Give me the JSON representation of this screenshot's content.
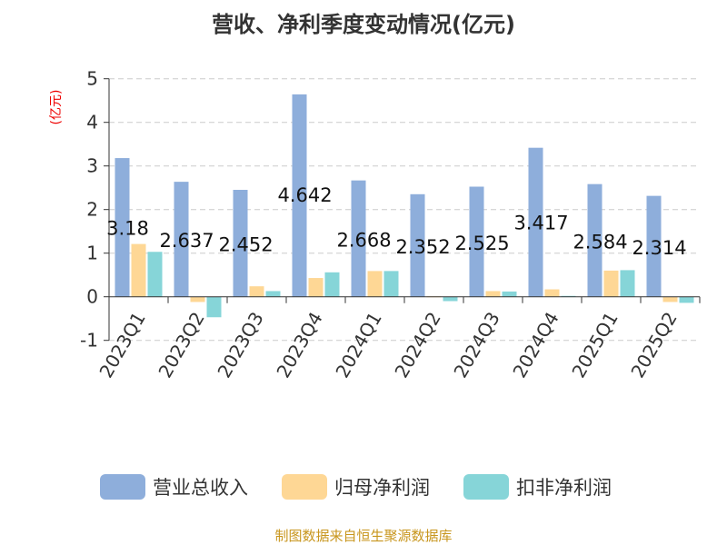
{
  "chart_data": {
    "type": "bar",
    "title": "营收、净利季度变动情况(亿元)",
    "ylabel": "(亿元)",
    "ylim": [
      -1,
      5
    ],
    "yticks": [
      -1,
      0,
      1,
      2,
      3,
      4,
      5
    ],
    "grid": true,
    "legend_placement": "bottom",
    "categories": [
      "2023Q1",
      "2023Q2",
      "2023Q3",
      "2023Q4",
      "2024Q1",
      "2024Q2",
      "2024Q3",
      "2024Q4",
      "2025Q1",
      "2025Q2"
    ],
    "series": [
      {
        "name": "营业总收入",
        "color": "#8eaedb",
        "values": [
          3.18,
          2.637,
          2.452,
          4.642,
          2.668,
          2.352,
          2.525,
          3.417,
          2.584,
          2.314
        ],
        "labels": [
          "3.18",
          "2.637",
          "2.452",
          "4.642",
          "2.668",
          "2.352",
          "2.525",
          "3.417",
          "2.584",
          "2.314"
        ]
      },
      {
        "name": "归母净利润",
        "color": "#fed795",
        "values": [
          1.21,
          -0.12,
          0.24,
          0.43,
          0.59,
          0.01,
          0.13,
          0.17,
          0.6,
          -0.12
        ]
      },
      {
        "name": "扣非净利润",
        "color": "#86d5d8",
        "values": [
          1.03,
          -0.47,
          0.13,
          0.56,
          0.59,
          -0.1,
          0.12,
          0.02,
          0.61,
          -0.14
        ]
      }
    ]
  },
  "footer": "制图数据来自恒生聚源数据库"
}
